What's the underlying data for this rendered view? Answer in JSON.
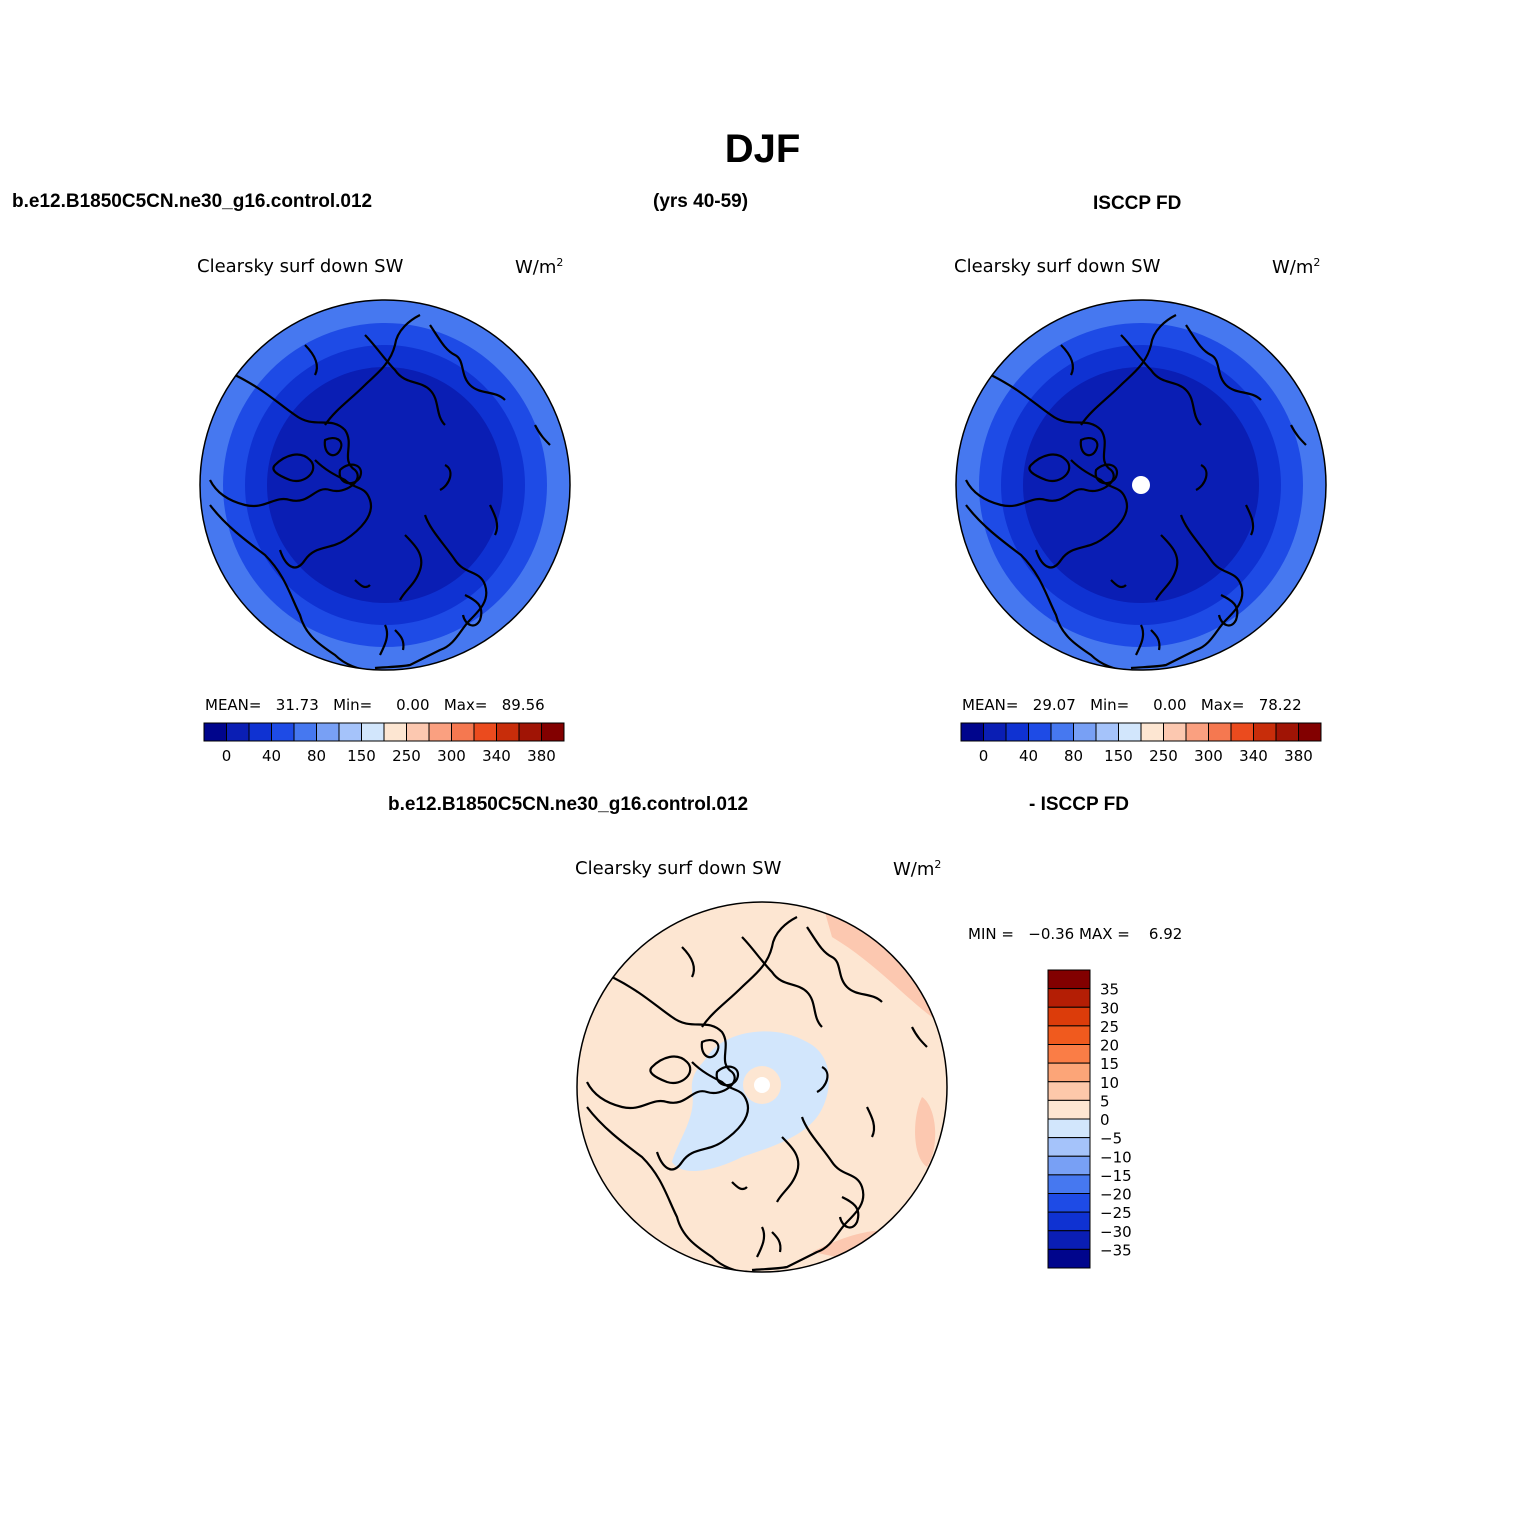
{
  "title": "DJF",
  "headers": {
    "top_left_case": "b.e12.B1850C5CN.ne30_g16.control.012",
    "years": "(yrs 40-59)",
    "top_right_obs": "ISCCP FD",
    "bottom_case": "b.e12.B1850C5CN.ne30_g16.control.012",
    "bottom_obs": "- ISCCP FD"
  },
  "panels": [
    {
      "id": "model",
      "variable": "Clearsky surf down SW",
      "units": "W/m",
      "units_sup": "2",
      "stats": {
        "mean_label": "MEAN=",
        "mean": "31.73",
        "min_label": "Min=",
        "min": "0.00",
        "max_label": "Max=",
        "max": "89.56"
      },
      "contour_bands": [
        "0-20",
        "20-40",
        "40-60",
        "60-80"
      ],
      "colorbar_ticks": [
        "0",
        "40",
        "80",
        "150",
        "250",
        "300",
        "340",
        "380"
      ]
    },
    {
      "id": "obs",
      "variable": "Clearsky surf down SW",
      "units": "W/m",
      "units_sup": "2",
      "stats": {
        "mean_label": "MEAN=",
        "mean": "29.07",
        "min_label": "Min=",
        "min": "0.00",
        "max_label": "Max=",
        "max": "78.22"
      },
      "contour_bands": [
        "0-20",
        "20-40",
        "40-60",
        "60-80"
      ],
      "missing_data_at_pole": true,
      "colorbar_ticks": [
        "0",
        "40",
        "80",
        "150",
        "250",
        "300",
        "340",
        "380"
      ]
    },
    {
      "id": "difference",
      "variable": "Clearsky surf down SW",
      "units": "W/m",
      "units_sup": "2",
      "stats": {
        "min_label": "MIN =",
        "min": "−0.36",
        "max_label": "MAX =",
        "max": "6.92"
      },
      "colorbar_ticks": [
        "35",
        "30",
        "25",
        "20",
        "15",
        "10",
        "5",
        "0",
        "−5",
        "−10",
        "−15",
        "−20",
        "−25",
        "−30",
        "−35"
      ]
    }
  ],
  "colors": {
    "abs_colorbar": [
      "#00058c",
      "#0a1eb4",
      "#0f32d2",
      "#1e4be6",
      "#4678f0",
      "#78a0f5",
      "#a5c3fa",
      "#d2e6fc",
      "#fde6d2",
      "#fcc8b0",
      "#faa080",
      "#f57850",
      "#eb4b1e",
      "#c82d0a",
      "#a01405",
      "#820000"
    ],
    "diff_colorbar_top_to_bottom": [
      "#820000",
      "#b41e05",
      "#dc3c0a",
      "#f05a1e",
      "#fa7d46",
      "#fca578",
      "#fdc8aa",
      "#fde6d2",
      "#d2e6fc",
      "#a5c3fa",
      "#78a0f5",
      "#4678f0",
      "#1e4be6",
      "#0f32d2",
      "#0a1eb4",
      "#00058c"
    ]
  }
}
